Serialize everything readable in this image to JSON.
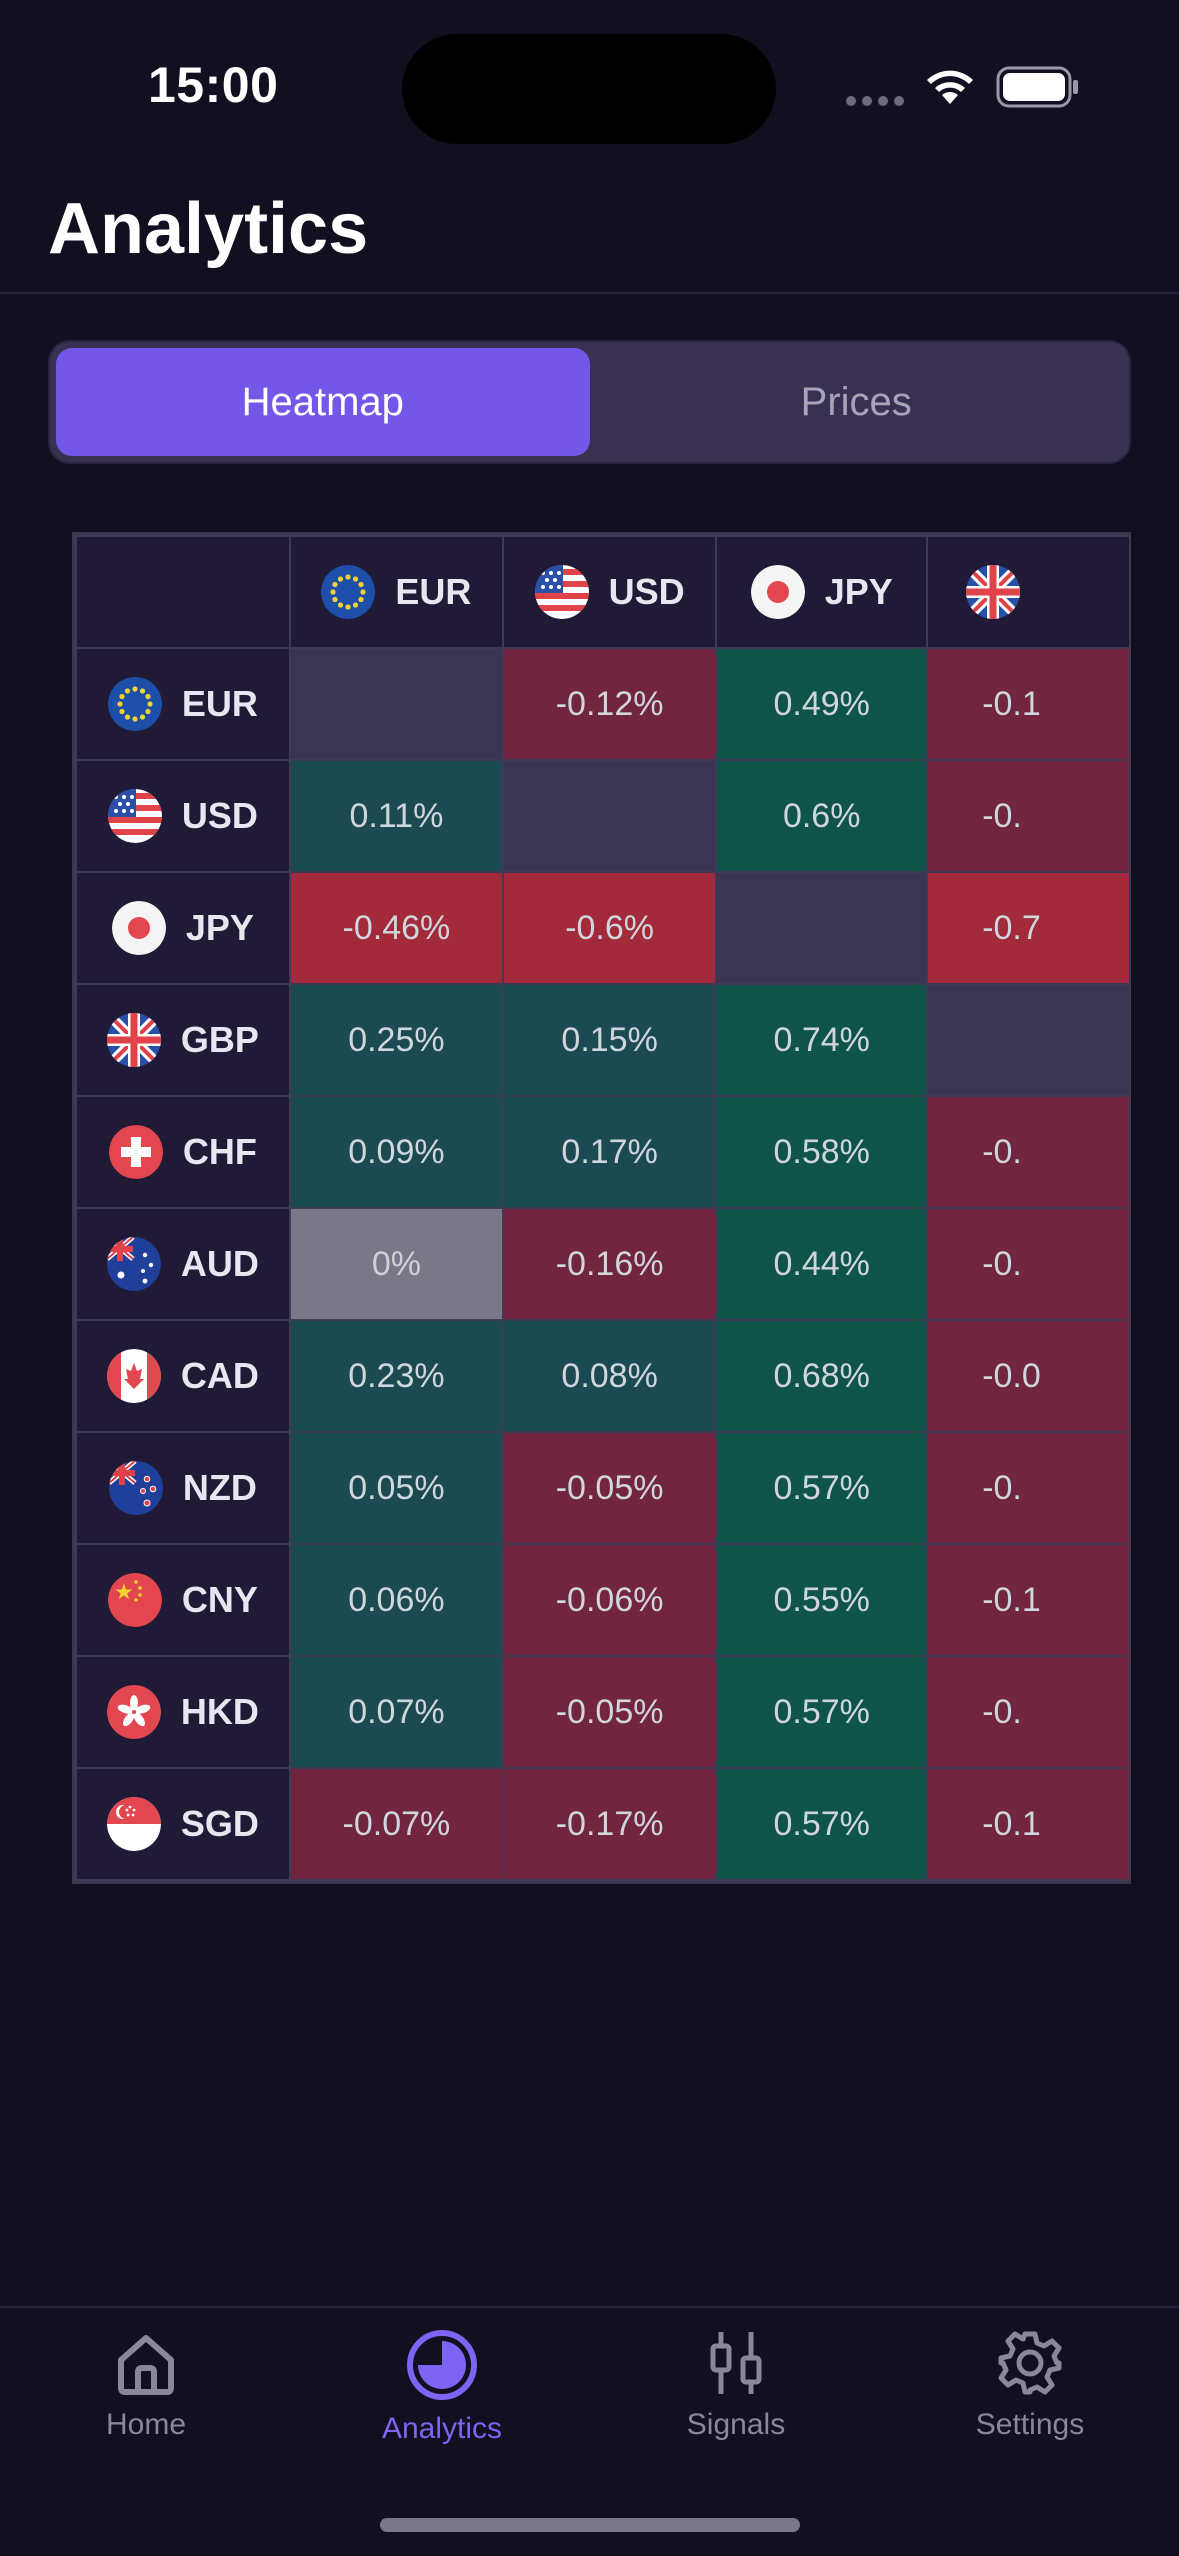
{
  "status_bar": {
    "time": "15:00"
  },
  "header": {
    "title": "Analytics"
  },
  "segmented": {
    "tabs": [
      {
        "label": "Heatmap",
        "active": true
      },
      {
        "label": "Prices",
        "active": false
      }
    ]
  },
  "heatmap": {
    "columns": [
      "EUR",
      "USD",
      "JPY",
      "GBP"
    ],
    "column_visible_text": [
      "EUR",
      "USD",
      "JPY",
      ""
    ],
    "rows": [
      {
        "currency": "EUR",
        "cells": [
          "",
          "-0.12%",
          "0.49%",
          "-0.1"
        ]
      },
      {
        "currency": "USD",
        "cells": [
          "0.11%",
          "",
          "0.6%",
          "-0."
        ]
      },
      {
        "currency": "JPY",
        "cells": [
          "-0.46%",
          "-0.6%",
          "",
          "-0.7"
        ]
      },
      {
        "currency": "GBP",
        "cells": [
          "0.25%",
          "0.15%",
          "0.74%",
          ""
        ]
      },
      {
        "currency": "CHF",
        "cells": [
          "0.09%",
          "0.17%",
          "0.58%",
          "-0."
        ]
      },
      {
        "currency": "AUD",
        "cells": [
          "0%",
          "-0.16%",
          "0.44%",
          "-0."
        ]
      },
      {
        "currency": "CAD",
        "cells": [
          "0.23%",
          "0.08%",
          "0.68%",
          "-0.0"
        ]
      },
      {
        "currency": "NZD",
        "cells": [
          "0.05%",
          "-0.05%",
          "0.57%",
          "-0."
        ]
      },
      {
        "currency": "CNY",
        "cells": [
          "0.06%",
          "-0.06%",
          "0.55%",
          "-0.1"
        ]
      },
      {
        "currency": "HKD",
        "cells": [
          "0.07%",
          "-0.05%",
          "0.57%",
          "-0."
        ]
      },
      {
        "currency": "SGD",
        "cells": [
          "-0.07%",
          "-0.17%",
          "0.57%",
          "-0.1"
        ]
      }
    ],
    "cell_styles": [
      [
        "self",
        "neg",
        "pos-strong",
        "neg"
      ],
      [
        "pos",
        "self",
        "pos-strong",
        "neg"
      ],
      [
        "neg-strong",
        "neg-strong",
        "self",
        "neg-strong"
      ],
      [
        "pos",
        "pos",
        "pos-strong",
        "self"
      ],
      [
        "pos",
        "pos",
        "pos-strong",
        "neg"
      ],
      [
        "zero",
        "neg",
        "pos-strong",
        "neg"
      ],
      [
        "pos",
        "pos",
        "pos-strong",
        "neg"
      ],
      [
        "pos",
        "neg",
        "pos-strong",
        "neg"
      ],
      [
        "pos",
        "neg",
        "pos-strong",
        "neg"
      ],
      [
        "pos",
        "neg",
        "pos-strong",
        "neg"
      ],
      [
        "neg",
        "neg",
        "pos-strong",
        "neg"
      ]
    ]
  },
  "tabbar": {
    "items": [
      {
        "label": "Home",
        "icon": "home-icon",
        "active": false
      },
      {
        "label": "Analytics",
        "icon": "pie-chart-icon",
        "active": true
      },
      {
        "label": "Signals",
        "icon": "candlestick-icon",
        "active": false
      },
      {
        "label": "Settings",
        "icon": "gear-icon",
        "active": false
      }
    ]
  },
  "colors": {
    "accent": "#7457e8",
    "background": "#120f20",
    "positive": "#1c4a52",
    "positive_strong": "#0f5448",
    "negative": "#72253f",
    "negative_strong": "#a32a3a"
  }
}
